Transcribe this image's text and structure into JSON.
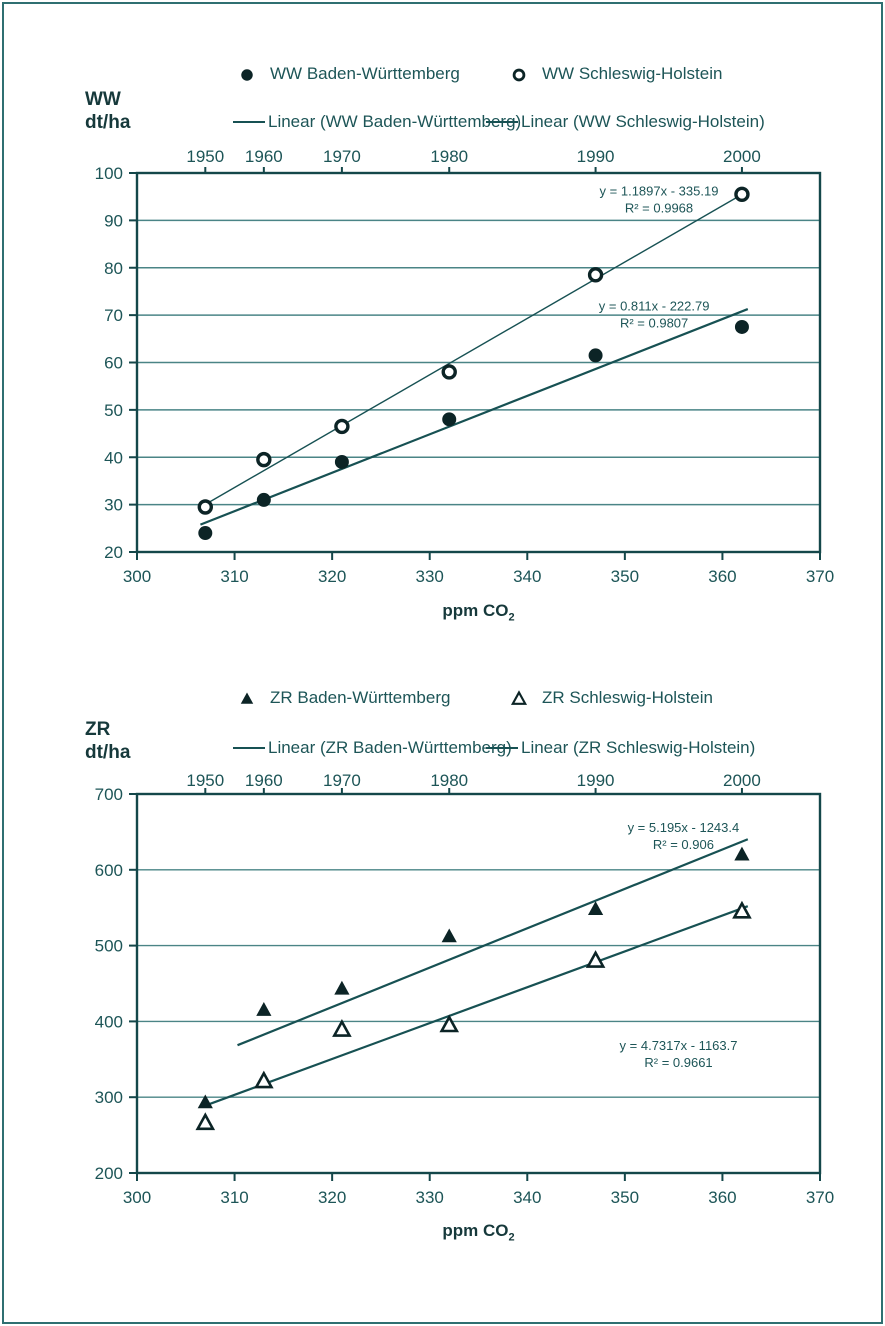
{
  "page": {
    "background": "#ffffff",
    "border_color": "#2f6f71"
  },
  "ink_colors": {
    "text": "#1d5557",
    "title": "#16393b",
    "axis": "#14474a",
    "grid": "#4a8486",
    "trend": "#175153",
    "marker": "#0c2426"
  },
  "chart_data": [
    {
      "type": "scatter",
      "y_axis_title": "WW\ndt/ha",
      "xlabel_main": "ppm CO",
      "xlabel_sub": "2",
      "x_axis": {
        "min": 300,
        "max": 370,
        "ticks": [
          300,
          310,
          320,
          330,
          340,
          350,
          360,
          370
        ]
      },
      "y_axis": {
        "min": 20,
        "max": 100,
        "ticks": [
          20,
          30,
          40,
          50,
          60,
          70,
          80,
          90,
          100
        ]
      },
      "grid": "horizontal",
      "top_axis_years": [
        {
          "label": "1950",
          "x": 307
        },
        {
          "label": "1960",
          "x": 313
        },
        {
          "label": "1970",
          "x": 321
        },
        {
          "label": "1980",
          "x": 332
        },
        {
          "label": "1990",
          "x": 347
        },
        {
          "label": "2000",
          "x": 362
        }
      ],
      "legend": {
        "position": "top-center",
        "markers": [
          {
            "marker": "circle-filled",
            "label": "WW Baden-Württemberg"
          },
          {
            "marker": "circle-open",
            "label": "WW Schleswig-Holstein"
          }
        ],
        "lines": [
          {
            "label": "Linear (WW Baden-Württemberg)"
          },
          {
            "label": "Linear (WW Schleswig-Holstein)"
          }
        ]
      },
      "series": [
        {
          "name": "WW Baden-Württemberg",
          "marker": "circle-filled",
          "points": [
            [
              307,
              24
            ],
            [
              313,
              31
            ],
            [
              321,
              39
            ],
            [
              332,
              48
            ],
            [
              347,
              61.5
            ],
            [
              362,
              67.5
            ]
          ]
        },
        {
          "name": "WW Schleswig-Holstein",
          "marker": "circle-open",
          "points": [
            [
              307,
              29.5
            ],
            [
              313,
              39.5
            ],
            [
              321,
              46.5
            ],
            [
              332,
              58
            ],
            [
              347,
              78.5
            ],
            [
              362,
              95.5
            ]
          ]
        }
      ],
      "trendlines": [
        {
          "series": "WW Schleswig-Holstein",
          "slope": 1.1897,
          "intercept": -335.19,
          "x_start": 306.5,
          "x_end": 362.3,
          "width": 1.4
        },
        {
          "series": "WW Baden-Württemberg",
          "slope": 0.811,
          "intercept": -222.79,
          "x_start": 306.5,
          "x_end": 362.6,
          "width": 2.2
        }
      ],
      "annotations": [
        {
          "x": 353.5,
          "y": 95.2,
          "lines": [
            "y = 1.1897x - 335.19",
            "R² = 0.9968"
          ]
        },
        {
          "x": 353.0,
          "y": 71.0,
          "lines": [
            "y = 0.811x - 222.79",
            "R² = 0.9807"
          ]
        }
      ]
    },
    {
      "type": "scatter",
      "y_axis_title": "ZR\ndt/ha",
      "xlabel_main": "ppm CO",
      "xlabel_sub": "2",
      "x_axis": {
        "min": 300,
        "max": 370,
        "ticks": [
          300,
          310,
          320,
          330,
          340,
          350,
          360,
          370
        ]
      },
      "y_axis": {
        "min": 200,
        "max": 700,
        "ticks": [
          200,
          300,
          400,
          500,
          600,
          700
        ]
      },
      "grid": "horizontal",
      "top_axis_years": [
        {
          "label": "1950",
          "x": 307
        },
        {
          "label": "1960",
          "x": 313
        },
        {
          "label": "1970",
          "x": 321
        },
        {
          "label": "1980",
          "x": 332
        },
        {
          "label": "1990",
          "x": 347
        },
        {
          "label": "2000",
          "x": 362
        }
      ],
      "legend": {
        "position": "top-center",
        "markers": [
          {
            "marker": "triangle-filled",
            "label": "ZR Baden-Württemberg"
          },
          {
            "marker": "triangle-open",
            "label": "ZR Schleswig-Holstein"
          }
        ],
        "lines": [
          {
            "label": "Linear (ZR Baden-Württemberg)"
          },
          {
            "label": "Linear (ZR Schleswig-Holstein)"
          }
        ]
      },
      "series": [
        {
          "name": "ZR Baden-Württemberg",
          "marker": "triangle-filled",
          "points": [
            [
              307,
              293
            ],
            [
              313,
              415
            ],
            [
              321,
              443
            ],
            [
              332,
              512
            ],
            [
              347,
              548
            ],
            [
              362,
              620
            ]
          ]
        },
        {
          "name": "ZR Schleswig-Holstein",
          "marker": "triangle-open",
          "points": [
            [
              307,
              266
            ],
            [
              313,
              321
            ],
            [
              321,
              389
            ],
            [
              332,
              395
            ],
            [
              347,
              480
            ],
            [
              362,
              545
            ]
          ]
        }
      ],
      "trendlines": [
        {
          "series": "ZR Baden-Württemberg",
          "slope": 5.195,
          "intercept": -1243.4,
          "x_start": 310.3,
          "x_end": 362.6,
          "width": 2.2
        },
        {
          "series": "ZR Schleswig-Holstein",
          "slope": 4.7317,
          "intercept": -1163.7,
          "x_start": 306.8,
          "x_end": 362.6,
          "width": 2.2
        }
      ],
      "annotations": [
        {
          "x": 356.0,
          "y": 650,
          "lines": [
            "y = 5.195x - 1243.4",
            "R² = 0.906"
          ]
        },
        {
          "x": 355.5,
          "y": 362,
          "lines": [
            "y = 4.7317x - 1163.7",
            "R² = 0.9661"
          ]
        }
      ]
    }
  ]
}
